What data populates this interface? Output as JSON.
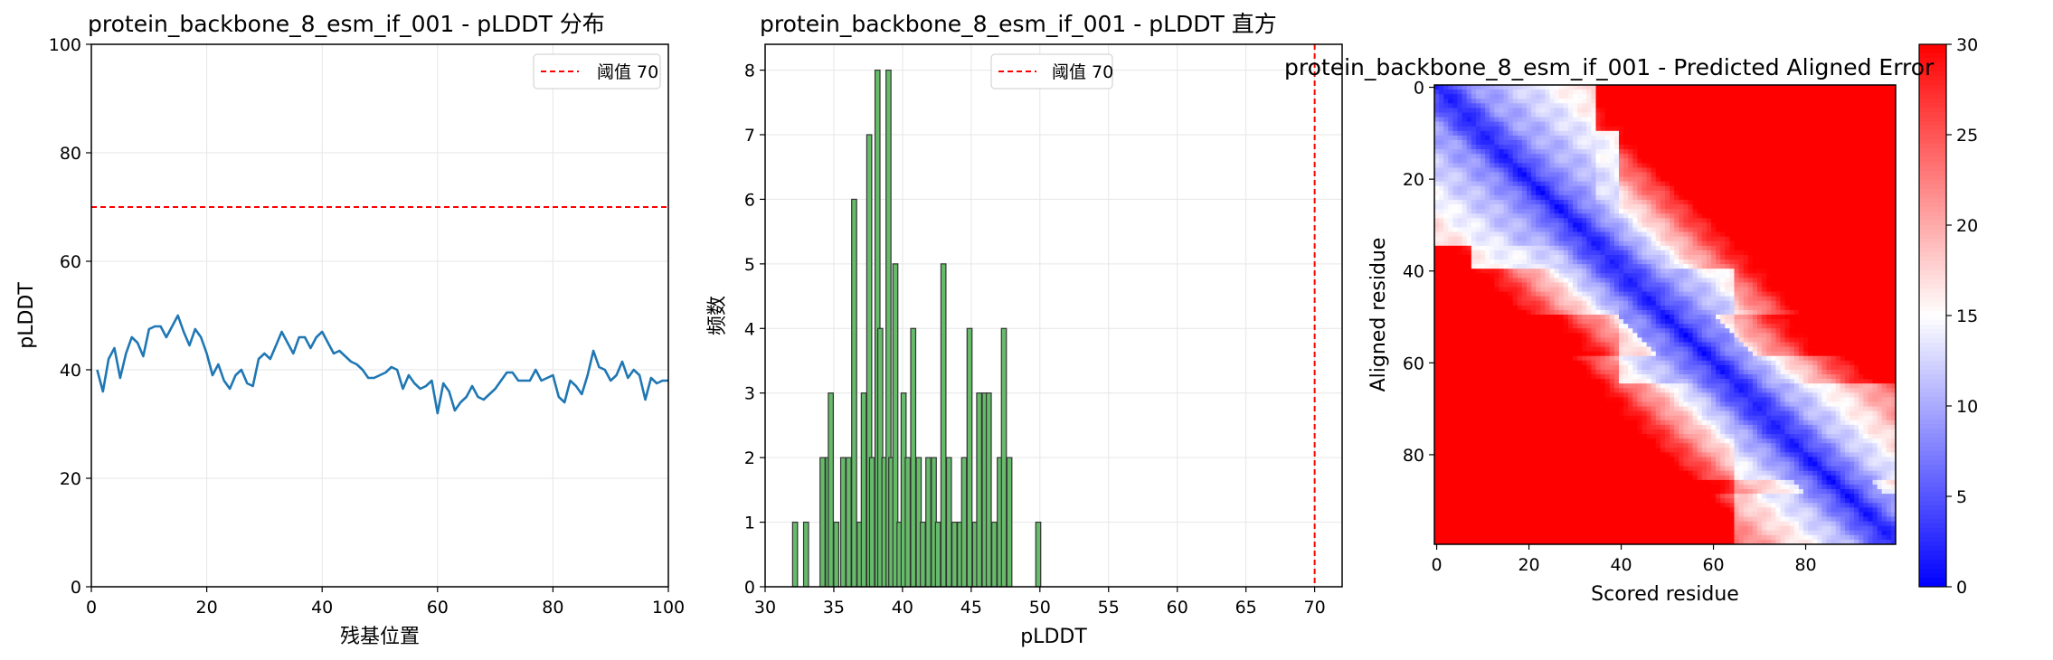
{
  "chart_data": [
    {
      "type": "line",
      "title": "protein_backbone_8_esm_if_001 - pLDDT 分布",
      "xlabel": "残基位置",
      "ylabel": "pLDDT",
      "xlim": [
        0,
        100
      ],
      "ylim": [
        0,
        100
      ],
      "xticks": [
        "0",
        "20",
        "40",
        "60",
        "80",
        "100"
      ],
      "yticks": [
        "0",
        "20",
        "40",
        "60",
        "80",
        "100"
      ],
      "grid": true,
      "legend_position": "top-right",
      "threshold": {
        "value": 70,
        "label": "阈值 70",
        "color": "#ff0000"
      },
      "series": [
        {
          "color": "#1f77b4",
          "x": [
            1,
            2,
            3,
            4,
            5,
            6,
            7,
            8,
            9,
            10,
            11,
            12,
            13,
            14,
            15,
            16,
            17,
            18,
            19,
            20,
            21,
            22,
            23,
            24,
            25,
            26,
            27,
            28,
            29,
            30,
            31,
            32,
            33,
            34,
            35,
            36,
            37,
            38,
            39,
            40,
            41,
            42,
            43,
            44,
            45,
            46,
            47,
            48,
            49,
            50,
            51,
            52,
            53,
            54,
            55,
            56,
            57,
            58,
            59,
            60,
            61,
            62,
            63,
            64,
            65,
            66,
            67,
            68,
            69,
            70,
            71,
            72,
            73,
            74,
            75,
            76,
            77,
            78,
            79,
            80,
            81,
            82,
            83,
            84,
            85,
            86,
            87,
            88,
            89,
            90,
            91,
            92,
            93,
            94,
            95,
            96,
            97,
            98,
            99,
            100
          ],
          "values": [
            40,
            36,
            42,
            44,
            38.5,
            43,
            46,
            45,
            42.5,
            47.5,
            48,
            48,
            46,
            48,
            50,
            47,
            44.5,
            47.5,
            46,
            43,
            39,
            41,
            38,
            36.5,
            39,
            40,
            37.5,
            37,
            42,
            43,
            42,
            44.5,
            47,
            45,
            43,
            46,
            46,
            44,
            46,
            47,
            45,
            43,
            43.5,
            42.5,
            41.5,
            41,
            40,
            38.5,
            38.5,
            39,
            39.5,
            40.5,
            40,
            36.5,
            39,
            37.5,
            36.5,
            37,
            38,
            32,
            37.5,
            36,
            32.5,
            34,
            35,
            37,
            35,
            34.5,
            35.5,
            36.5,
            38,
            39.5,
            39.5,
            38,
            38,
            38,
            40,
            38,
            38.5,
            39,
            35,
            34,
            38,
            37,
            35.5,
            39,
            43.5,
            40.5,
            40,
            38,
            39,
            41.5,
            38.5,
            40,
            39,
            34.5,
            38.5,
            37.5,
            38,
            38
          ]
        }
      ]
    },
    {
      "type": "bar",
      "title": "protein_backbone_8_esm_if_001 - pLDDT 直方",
      "xlabel": "pLDDT",
      "ylabel": "频数",
      "xlim": [
        30,
        72
      ],
      "ylim": [
        0,
        8.4
      ],
      "xticks": [
        "30",
        "35",
        "40",
        "45",
        "50",
        "55",
        "60",
        "65",
        "70"
      ],
      "yticks": [
        "0",
        "1",
        "2",
        "3",
        "4",
        "5",
        "6",
        "7",
        "8"
      ],
      "grid": true,
      "legend_position": "top-center",
      "threshold": {
        "value": 70,
        "label": "阈值 70",
        "color": "#ff0000"
      },
      "bar_color": "#66bb6a",
      "bin_width": 0.36,
      "bin_starts": [
        32.0,
        32.8,
        34.0,
        34.4,
        34.6,
        35.0,
        35.5,
        35.9,
        36.3,
        36.7,
        37.0,
        37.4,
        37.6,
        38.0,
        38.2,
        38.5,
        38.8,
        39.0,
        39.3,
        39.6,
        39.9,
        40.2,
        40.6,
        41.0,
        41.3,
        41.7,
        42.1,
        42.4,
        42.8,
        43.2,
        43.6,
        44.0,
        44.3,
        44.7,
        45.1,
        45.4,
        45.8,
        46.1,
        46.5,
        46.9,
        47.2,
        47.6,
        49.7
      ],
      "values": [
        1,
        1,
        2,
        2,
        3,
        1,
        2,
        2,
        6,
        1,
        3,
        7,
        2,
        8,
        4,
        2,
        8,
        2,
        5,
        1,
        3,
        2,
        4,
        2,
        1,
        2,
        2,
        1,
        5,
        2,
        1,
        1,
        2,
        4,
        1,
        3,
        3,
        3,
        1,
        2,
        4,
        2,
        1
      ]
    },
    {
      "type": "heatmap",
      "title": "protein_backbone_8_esm_if_001 - Predicted Aligned Error",
      "xlabel": "Scored residue",
      "ylabel": "Aligned residue",
      "size": 100,
      "xticks": [
        "0",
        "20",
        "40",
        "60",
        "80"
      ],
      "yticks": [
        "0",
        "20",
        "40",
        "60",
        "80"
      ],
      "colormap": "bwr",
      "colorbar": {
        "min": 0,
        "max": 30,
        "ticks": [
          "0",
          "5",
          "10",
          "15",
          "20",
          "25",
          "30"
        ]
      },
      "grid": false
    }
  ]
}
